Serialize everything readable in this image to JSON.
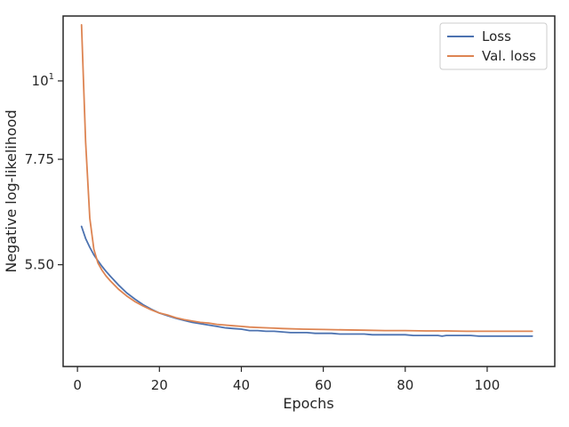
{
  "chart_data": {
    "type": "line",
    "title": "",
    "xlabel": "Epochs",
    "ylabel": "Negative log-likelihood",
    "yscale": "log",
    "xlim": [
      -3.5,
      116.5
    ],
    "ylim": [
      3.95,
      12.35
    ],
    "grid": false,
    "legend_position": "top-right",
    "x_ticks": [
      {
        "value": 0,
        "label": "0"
      },
      {
        "value": 20,
        "label": "20"
      },
      {
        "value": 40,
        "label": "40"
      },
      {
        "value": 60,
        "label": "60"
      },
      {
        "value": 80,
        "label": "80"
      },
      {
        "value": 100,
        "label": "100"
      }
    ],
    "y_ticks": [
      {
        "value": 5.5,
        "label": "5.50"
      },
      {
        "value": 7.75,
        "label": "7.75"
      },
      {
        "value": 10,
        "label": "10",
        "exponent": "1"
      }
    ],
    "series": [
      {
        "name": "Loss",
        "color": "#4c72b0",
        "x": [
          1,
          2,
          3,
          4,
          5,
          6,
          7,
          8,
          10,
          12,
          14,
          16,
          18,
          20,
          22,
          24,
          26,
          28,
          30,
          32,
          34,
          36,
          38,
          40,
          42,
          44,
          46,
          48,
          50,
          52,
          54,
          56,
          58,
          60,
          62,
          64,
          66,
          68,
          70,
          72,
          74,
          76,
          78,
          80,
          82,
          84,
          86,
          88,
          89,
          90,
          92,
          94,
          96,
          98,
          100,
          102,
          104,
          106,
          108,
          110,
          111
        ],
        "y": [
          6.23,
          5.99,
          5.82,
          5.68,
          5.57,
          5.47,
          5.38,
          5.3,
          5.15,
          5.02,
          4.92,
          4.83,
          4.76,
          4.7,
          4.66,
          4.62,
          4.59,
          4.56,
          4.54,
          4.52,
          4.5,
          4.48,
          4.47,
          4.46,
          4.44,
          4.44,
          4.43,
          4.43,
          4.42,
          4.41,
          4.41,
          4.41,
          4.4,
          4.4,
          4.4,
          4.39,
          4.39,
          4.39,
          4.39,
          4.38,
          4.38,
          4.38,
          4.38,
          4.38,
          4.37,
          4.37,
          4.37,
          4.37,
          4.36,
          4.37,
          4.37,
          4.37,
          4.37,
          4.36,
          4.36,
          4.36,
          4.36,
          4.36,
          4.36,
          4.36,
          4.36
        ]
      },
      {
        "name": "Val. loss",
        "color": "#dd8452",
        "x": [
          1,
          2,
          3,
          4,
          5,
          6,
          7,
          8,
          10,
          12,
          14,
          16,
          18,
          20,
          22,
          24,
          26,
          28,
          30,
          32,
          34,
          36,
          38,
          40,
          42,
          44,
          46,
          48,
          50,
          55,
          60,
          65,
          70,
          75,
          80,
          85,
          90,
          95,
          100,
          105,
          111
        ],
        "y": [
          12.0,
          8.2,
          6.4,
          5.78,
          5.53,
          5.4,
          5.3,
          5.22,
          5.08,
          4.97,
          4.88,
          4.81,
          4.75,
          4.7,
          4.67,
          4.63,
          4.6,
          4.58,
          4.56,
          4.55,
          4.53,
          4.52,
          4.51,
          4.5,
          4.49,
          4.485,
          4.48,
          4.475,
          4.47,
          4.46,
          4.455,
          4.45,
          4.445,
          4.44,
          4.44,
          4.435,
          4.435,
          4.43,
          4.43,
          4.43,
          4.43
        ]
      }
    ]
  }
}
